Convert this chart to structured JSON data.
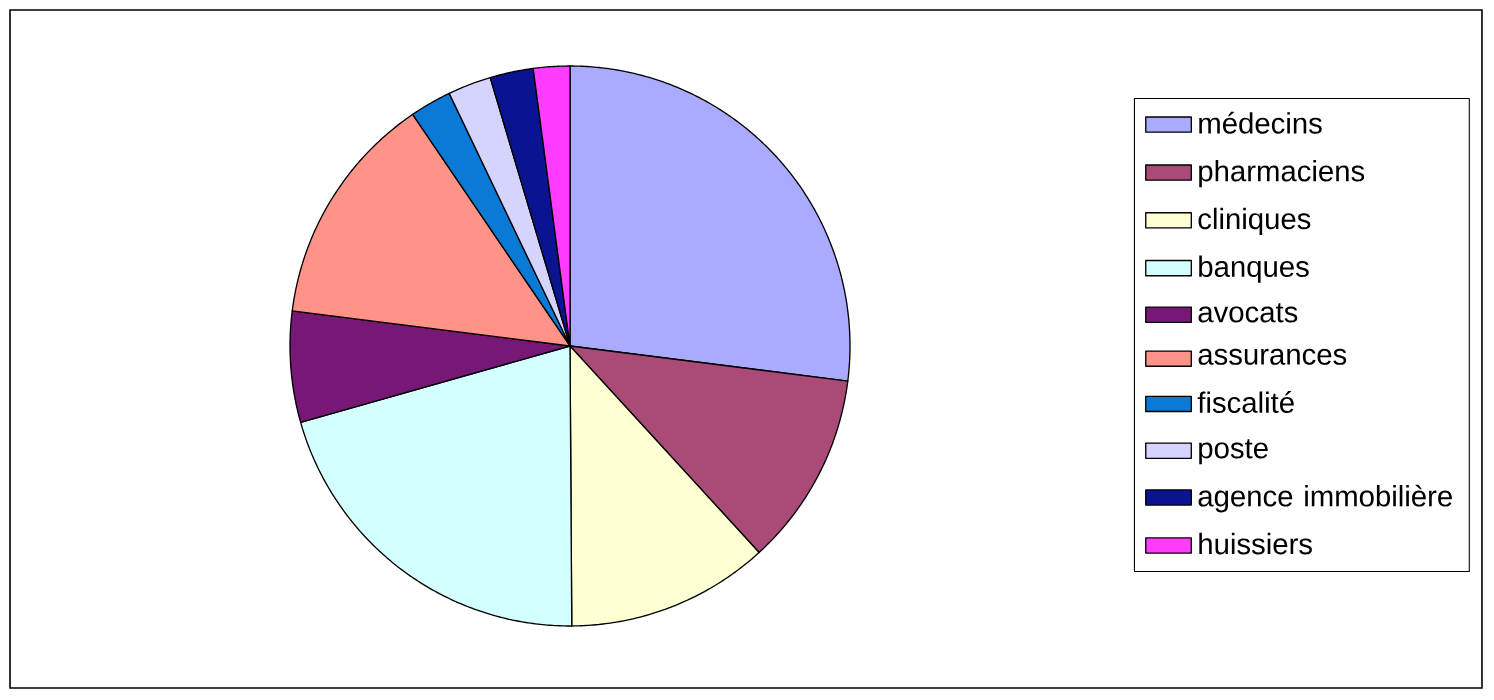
{
  "chart_data": {
    "type": "pie",
    "categories": [
      "médecins",
      "pharmaciens",
      "cliniques",
      "banques",
      "avocats",
      "assurances",
      "fiscalité",
      "poste",
      "agence immobilière",
      "huissiers"
    ],
    "values": [
      27.0,
      11.2,
      11.7,
      20.7,
      6.4,
      13.5,
      2.4,
      2.5,
      2.5,
      2.1
    ],
    "colors": [
      "#aaaaff",
      "#aa4a77",
      "#ffffd4",
      "#d4ffff",
      "#771877",
      "#ff9388",
      "#0a7ad6",
      "#d4d4ff",
      "#0a1490",
      "#ff3cff"
    ],
    "legend": "right"
  }
}
